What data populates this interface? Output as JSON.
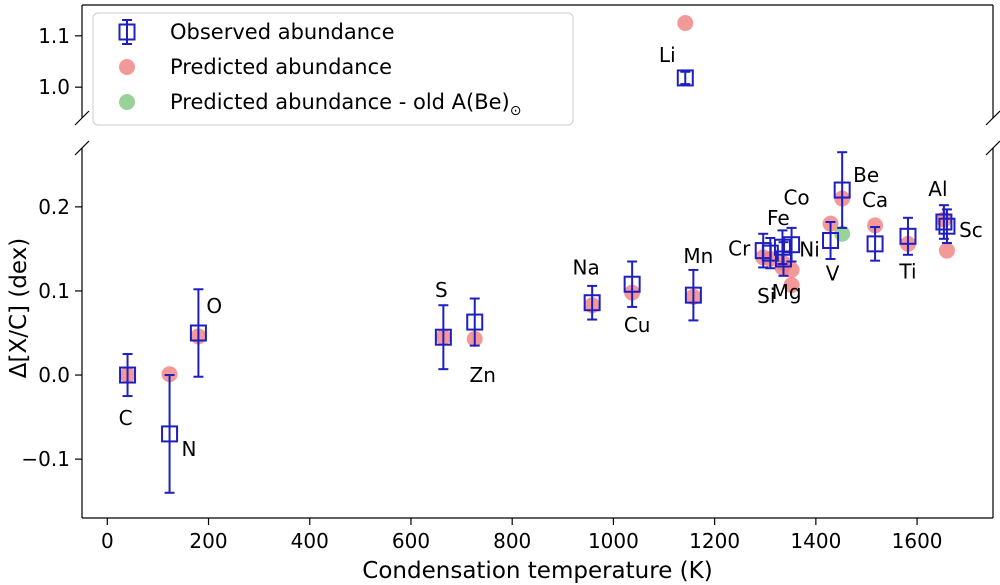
{
  "chart_data": {
    "type": "scatter",
    "xlabel": "Condensation temperature (K)",
    "ylabel": "Δ[X/C] (dex)",
    "xlim": [
      -50,
      1750
    ],
    "ylim_lower": [
      -0.17,
      0.27
    ],
    "ylim_upper": [
      0.94,
      1.16
    ],
    "broken_y_axis": true,
    "grid": false,
    "legend_position": "top-left",
    "x_ticks": [
      0,
      200,
      400,
      600,
      800,
      1000,
      1200,
      1400,
      1600
    ],
    "y_ticks_lower": [
      -0.1,
      0.0,
      0.1,
      0.2
    ],
    "y_ticks_upper": [
      1.0,
      1.1
    ],
    "colors": {
      "observed": "#1f1fbf",
      "predicted": "#f08080",
      "predicted_old": "#7fc77f"
    },
    "legend": [
      {
        "key": "observed",
        "label": "Observed abundance",
        "sub": ""
      },
      {
        "key": "predicted",
        "label": "Predicted abundance",
        "sub": ""
      },
      {
        "key": "predicted_old",
        "label": "Predicted abundance - old A(Be)",
        "sub": "⊙"
      }
    ],
    "series": [
      {
        "name": "Observed abundance",
        "key": "observed",
        "points": [
          {
            "x": 40,
            "y": 0.0,
            "err": 0.025
          },
          {
            "x": 123,
            "y": -0.07,
            "err": 0.07
          },
          {
            "x": 180,
            "y": 0.05,
            "err": 0.052
          },
          {
            "x": 664,
            "y": 0.045,
            "err": 0.038
          },
          {
            "x": 726,
            "y": 0.063,
            "err": 0.028
          },
          {
            "x": 958,
            "y": 0.086,
            "err": 0.02
          },
          {
            "x": 1037,
            "y": 0.108,
            "err": 0.027
          },
          {
            "x": 1142,
            "y": 1.018,
            "err": 0.012
          },
          {
            "x": 1158,
            "y": 0.095,
            "err": 0.03
          },
          {
            "x": 1296,
            "y": 0.148,
            "err": 0.02
          },
          {
            "x": 1310,
            "y": 0.145,
            "err": 0.018
          },
          {
            "x": 1334,
            "y": 0.152,
            "err": 0.02
          },
          {
            "x": 1336,
            "y": 0.138,
            "err": 0.02
          },
          {
            "x": 1352,
            "y": 0.155,
            "err": 0.02
          },
          {
            "x": 1429,
            "y": 0.16,
            "err": 0.022
          },
          {
            "x": 1452,
            "y": 0.22,
            "err": 0.045
          },
          {
            "x": 1517,
            "y": 0.156,
            "err": 0.02
          },
          {
            "x": 1582,
            "y": 0.165,
            "err": 0.022
          },
          {
            "x": 1653,
            "y": 0.182,
            "err": 0.02
          },
          {
            "x": 1659,
            "y": 0.177,
            "err": 0.02
          }
        ]
      },
      {
        "name": "Predicted abundance",
        "key": "predicted",
        "points": [
          {
            "x": 40,
            "y": 0.0
          },
          {
            "x": 123,
            "y": 0.001
          },
          {
            "x": 180,
            "y": 0.046
          },
          {
            "x": 664,
            "y": 0.045
          },
          {
            "x": 726,
            "y": 0.043
          },
          {
            "x": 958,
            "y": 0.083
          },
          {
            "x": 1037,
            "y": 0.098
          },
          {
            "x": 1142,
            "y": 1.125
          },
          {
            "x": 1158,
            "y": 0.093
          },
          {
            "x": 1296,
            "y": 0.14
          },
          {
            "x": 1310,
            "y": 0.138
          },
          {
            "x": 1334,
            "y": 0.128
          },
          {
            "x": 1336,
            "y": 0.133
          },
          {
            "x": 1352,
            "y": 0.125
          },
          {
            "x": 1352,
            "y": 0.107
          },
          {
            "x": 1429,
            "y": 0.18
          },
          {
            "x": 1452,
            "y": 0.21
          },
          {
            "x": 1517,
            "y": 0.178
          },
          {
            "x": 1582,
            "y": 0.156
          },
          {
            "x": 1653,
            "y": 0.185
          },
          {
            "x": 1659,
            "y": 0.148
          }
        ]
      },
      {
        "name": "Predicted abundance - old A(Be)⊙",
        "key": "predicted_old",
        "points": [
          {
            "x": 1452,
            "y": 0.168
          }
        ]
      }
    ],
    "element_labels": [
      {
        "text": "C",
        "x": 40,
        "y": 0.0,
        "dx": -2,
        "dy": 50,
        "anchor": "middle"
      },
      {
        "text": "N",
        "x": 123,
        "y": -0.07,
        "dx": 12,
        "dy": 22,
        "anchor": "start"
      },
      {
        "text": "O",
        "x": 180,
        "y": 0.05,
        "dx": 8,
        "dy": -20,
        "anchor": "start"
      },
      {
        "text": "S",
        "x": 664,
        "y": 0.045,
        "dx": -2,
        "dy": -40,
        "anchor": "middle"
      },
      {
        "text": "Zn",
        "x": 726,
        "y": 0.063,
        "dx": 8,
        "dy": 60,
        "anchor": "middle"
      },
      {
        "text": "Na",
        "x": 958,
        "y": 0.086,
        "dx": -6,
        "dy": -28,
        "anchor": "middle"
      },
      {
        "text": "Cu",
        "x": 1037,
        "y": 0.108,
        "dx": 5,
        "dy": 48,
        "anchor": "middle"
      },
      {
        "text": "Li",
        "x": 1142,
        "y": 1.018,
        "dx": -18,
        "dy": -16,
        "anchor": "middle"
      },
      {
        "text": "Mn",
        "x": 1158,
        "y": 0.095,
        "dx": 5,
        "dy": -32,
        "anchor": "middle"
      },
      {
        "text": "Cr",
        "x": 1296,
        "y": 0.148,
        "dx": -24,
        "dy": 5,
        "anchor": "middle"
      },
      {
        "text": "Fe",
        "x": 1310,
        "y": 0.145,
        "dx": 8,
        "dy": -28,
        "anchor": "middle"
      },
      {
        "text": "Si",
        "x": 1310,
        "y": 0.145,
        "dx": -4,
        "dy": 50,
        "anchor": "middle"
      },
      {
        "text": "Co",
        "x": 1352,
        "y": 0.155,
        "dx": 5,
        "dy": -40,
        "anchor": "middle"
      },
      {
        "text": "Mg",
        "x": 1352,
        "y": 0.107,
        "dx": -5,
        "dy": 14,
        "anchor": "middle"
      },
      {
        "text": "Ni",
        "x": 1352,
        "y": 0.155,
        "dx": 18,
        "dy": 12,
        "anchor": "middle"
      },
      {
        "text": "V",
        "x": 1429,
        "y": 0.16,
        "dx": 2,
        "dy": 40,
        "anchor": "middle"
      },
      {
        "text": "Be",
        "x": 1452,
        "y": 0.22,
        "dx": 24,
        "dy": -8,
        "anchor": "middle"
      },
      {
        "text": "Ca",
        "x": 1517,
        "y": 0.156,
        "dx": 0,
        "dy": -37,
        "anchor": "middle"
      },
      {
        "text": "Ti",
        "x": 1582,
        "y": 0.165,
        "dx": 0,
        "dy": 42,
        "anchor": "middle"
      },
      {
        "text": "Al",
        "x": 1653,
        "y": 0.182,
        "dx": -6,
        "dy": -26,
        "anchor": "middle"
      },
      {
        "text": "Sc",
        "x": 1659,
        "y": 0.177,
        "dx": 24,
        "dy": 11,
        "anchor": "middle"
      }
    ]
  }
}
